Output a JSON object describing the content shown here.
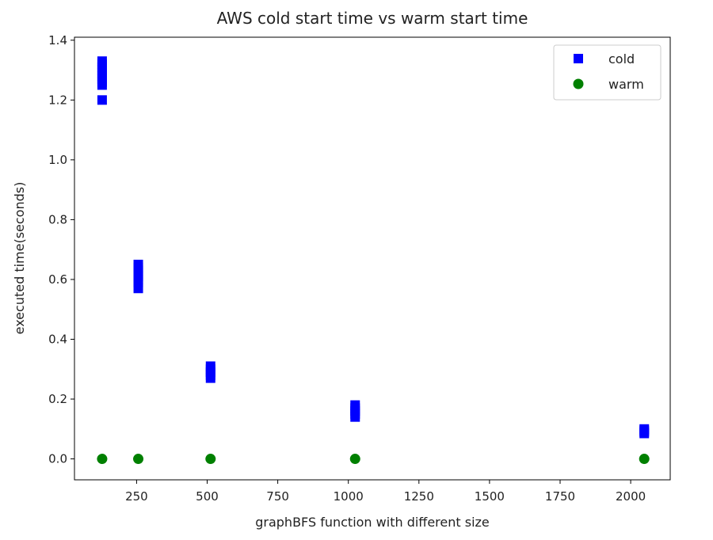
{
  "chart_data": {
    "type": "scatter",
    "title": "AWS cold start time vs warm start time",
    "xlabel": "graphBFS function with different size",
    "ylabel": "executed time(seconds)",
    "xlim": [
      30,
      2140
    ],
    "ylim": [
      -0.07,
      1.41
    ],
    "xticks": [
      250,
      500,
      750,
      1000,
      1250,
      1500,
      1750,
      2000
    ],
    "xtick_labels": [
      "250",
      "500",
      "750",
      "1000",
      "1250",
      "1500",
      "1750",
      "2000"
    ],
    "yticks": [
      0.0,
      0.2,
      0.4,
      0.6,
      0.8,
      1.0,
      1.2,
      1.4
    ],
    "ytick_labels": [
      "0.0",
      "0.2",
      "0.4",
      "0.6",
      "0.8",
      "1.0",
      "1.2",
      "1.4"
    ],
    "grid": false,
    "legend_position": "top-right",
    "series": [
      {
        "name": "cold",
        "marker": "square",
        "color": "#0000ff",
        "points": [
          [
            128,
            1.2
          ],
          [
            128,
            1.25
          ],
          [
            128,
            1.26
          ],
          [
            128,
            1.27
          ],
          [
            128,
            1.28
          ],
          [
            128,
            1.29
          ],
          [
            128,
            1.3
          ],
          [
            128,
            1.31
          ],
          [
            128,
            1.32
          ],
          [
            128,
            1.33
          ],
          [
            256,
            0.57
          ],
          [
            256,
            0.59
          ],
          [
            256,
            0.6
          ],
          [
            256,
            0.61
          ],
          [
            256,
            0.62
          ],
          [
            256,
            0.63
          ],
          [
            256,
            0.64
          ],
          [
            256,
            0.65
          ],
          [
            512,
            0.27
          ],
          [
            512,
            0.28
          ],
          [
            512,
            0.29
          ],
          [
            512,
            0.3
          ],
          [
            512,
            0.31
          ],
          [
            1024,
            0.14
          ],
          [
            1024,
            0.15
          ],
          [
            1024,
            0.16
          ],
          [
            1024,
            0.17
          ],
          [
            1024,
            0.18
          ],
          [
            2048,
            0.085
          ],
          [
            2048,
            0.09
          ],
          [
            2048,
            0.095
          ],
          [
            2048,
            0.1
          ]
        ]
      },
      {
        "name": "warm",
        "marker": "circle",
        "color": "#008000",
        "points": [
          [
            128,
            0.0
          ],
          [
            256,
            0.0
          ],
          [
            512,
            0.0
          ],
          [
            1024,
            0.0
          ],
          [
            2048,
            0.0
          ]
        ]
      }
    ]
  }
}
